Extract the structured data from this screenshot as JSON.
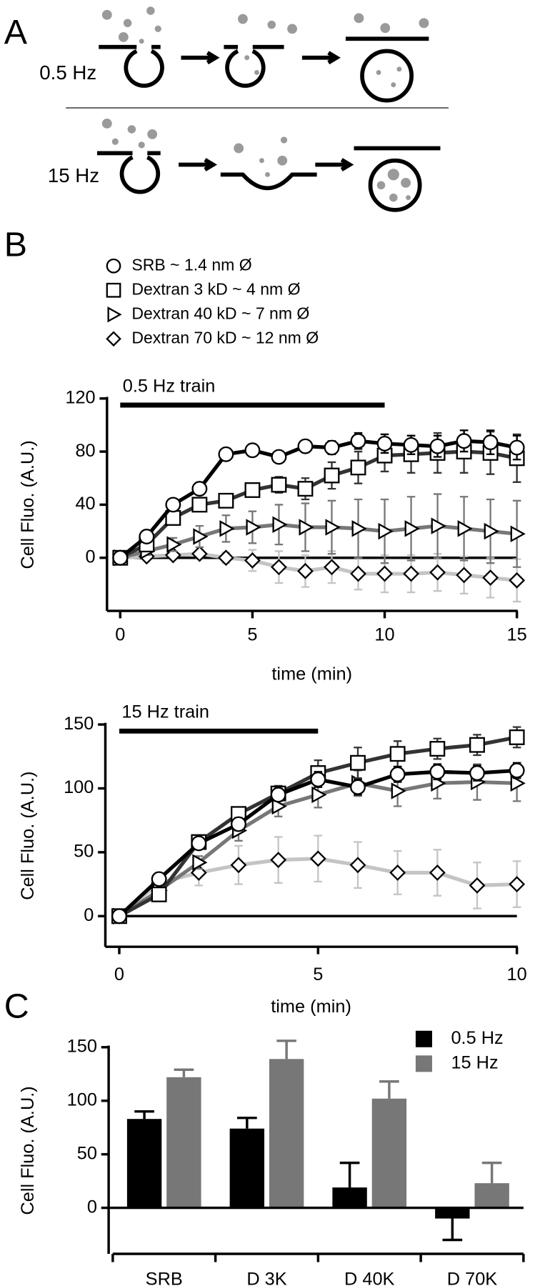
{
  "panel_labels": [
    "A",
    "B",
    "C"
  ],
  "diagram_labels": [
    "0.5 Hz",
    "15 Hz"
  ],
  "chart_data": [
    {
      "type": "line",
      "legend": "above",
      "annotation": {
        "text": "0.5 Hz train",
        "start": 0,
        "end": 10
      },
      "x_label": "time (min)",
      "y_label": "Cell Fluo. (A.U.)",
      "x": [
        0,
        1,
        2,
        3,
        4,
        5,
        6,
        7,
        8,
        9,
        10,
        11,
        12,
        13,
        14,
        15
      ],
      "xlim": [
        -0.5,
        15
      ],
      "xticks": [
        0,
        5,
        10,
        15
      ],
      "ylim": [
        -40,
        120
      ],
      "yticks": [
        0,
        40,
        80,
        120
      ],
      "zero_line": true,
      "series": [
        {
          "name": "Dextran 70 kD ~ 12 nm Ø",
          "marker": "diamond",
          "color": "#c4c4c4",
          "values": [
            0,
            1,
            2,
            3,
            0,
            -2,
            -7,
            -10,
            -7,
            -12,
            -12,
            -12,
            -11,
            -13,
            -15,
            -17
          ],
          "errors": [
            0,
            1,
            2,
            3,
            4,
            8,
            12,
            12,
            12,
            12,
            14,
            14,
            14,
            14,
            15,
            16
          ]
        },
        {
          "name": "Dextran 40 kD ~ 7 nm Ø",
          "marker": "triangle",
          "color": "#777777",
          "values": [
            0,
            5,
            10,
            16,
            22,
            23,
            25,
            23,
            23,
            22,
            20,
            22,
            24,
            22,
            20,
            18
          ],
          "errors": [
            0,
            3,
            5,
            8,
            10,
            12,
            15,
            18,
            20,
            22,
            24,
            24,
            24,
            24,
            24,
            25
          ]
        },
        {
          "name": "Dextran 3 kD ~ 4 nm Ø",
          "marker": "square",
          "color": "#333333",
          "values": [
            0,
            10,
            30,
            40,
            43,
            51,
            55,
            52,
            62,
            68,
            77,
            78,
            79,
            80,
            79,
            75
          ],
          "errors": [
            0,
            2,
            3,
            4,
            4,
            5,
            6,
            8,
            10,
            12,
            12,
            14,
            15,
            16,
            16,
            18
          ]
        },
        {
          "name": "SRB ~ 1.4 nm Ø",
          "marker": "circle",
          "color": "#000000",
          "values": [
            0,
            16,
            40,
            52,
            78,
            81,
            76,
            84,
            83,
            88,
            86,
            85,
            84,
            88,
            87,
            83
          ],
          "errors": [
            0,
            1,
            2,
            2,
            3,
            3,
            3,
            4,
            5,
            6,
            7,
            7,
            8,
            8,
            9,
            9
          ]
        }
      ]
    },
    {
      "type": "line",
      "annotation": {
        "text": "15 Hz train",
        "start": 0,
        "end": 5
      },
      "x_label": "time (min)",
      "y_label": "Cell Fluo. (A.U.)",
      "x": [
        0,
        1,
        2,
        3,
        4,
        5,
        6,
        7,
        8,
        9,
        10
      ],
      "xlim": [
        -0.35,
        10
      ],
      "xticks": [
        0,
        5,
        10
      ],
      "ylim": [
        -24,
        150
      ],
      "yticks": [
        0,
        50,
        100,
        150
      ],
      "zero_line": true,
      "series": [
        {
          "marker": "diamond",
          "color": "#c4c4c4",
          "values": [
            0,
            26,
            34,
            40,
            44,
            45,
            40,
            34,
            34,
            24,
            25
          ],
          "errors": [
            0,
            3,
            10,
            15,
            18,
            18,
            18,
            17,
            18,
            18,
            18
          ]
        },
        {
          "marker": "triangle",
          "color": "#777777",
          "values": [
            0,
            20,
            42,
            67,
            86,
            95,
            104,
            98,
            104,
            105,
            104
          ],
          "errors": [
            0,
            2,
            5,
            8,
            8,
            10,
            10,
            12,
            12,
            14,
            14
          ]
        },
        {
          "marker": "square",
          "color": "#333333",
          "values": [
            0,
            17,
            58,
            80,
            96,
            112,
            120,
            127,
            131,
            134,
            140
          ],
          "errors": [
            0,
            3,
            5,
            5,
            6,
            10,
            12,
            10,
            8,
            8,
            8
          ]
        },
        {
          "marker": "circle",
          "color": "#000000",
          "values": [
            0,
            29,
            57,
            72,
            95,
            107,
            101,
            111,
            113,
            112,
            114
          ],
          "errors": [
            0,
            2,
            4,
            5,
            5,
            6,
            6,
            6,
            6,
            6,
            6
          ]
        }
      ]
    },
    {
      "type": "bar",
      "legend": "top-right",
      "y_label": "Cell Fluo. (A.U.)",
      "categories": [
        "SRB",
        "D 3K",
        "D 40K",
        "D 70K"
      ],
      "ylim": [
        -43,
        150
      ],
      "yticks": [
        0,
        50,
        100,
        150
      ],
      "series": [
        {
          "name": "0.5 Hz",
          "color": "#000000",
          "values": [
            83,
            74,
            19,
            -10
          ],
          "errors": [
            7,
            10,
            23,
            20
          ]
        },
        {
          "name": "15 Hz",
          "color": "#777777",
          "values": [
            122,
            139,
            102,
            23
          ],
          "errors": [
            7,
            17,
            16,
            19
          ]
        }
      ]
    }
  ]
}
